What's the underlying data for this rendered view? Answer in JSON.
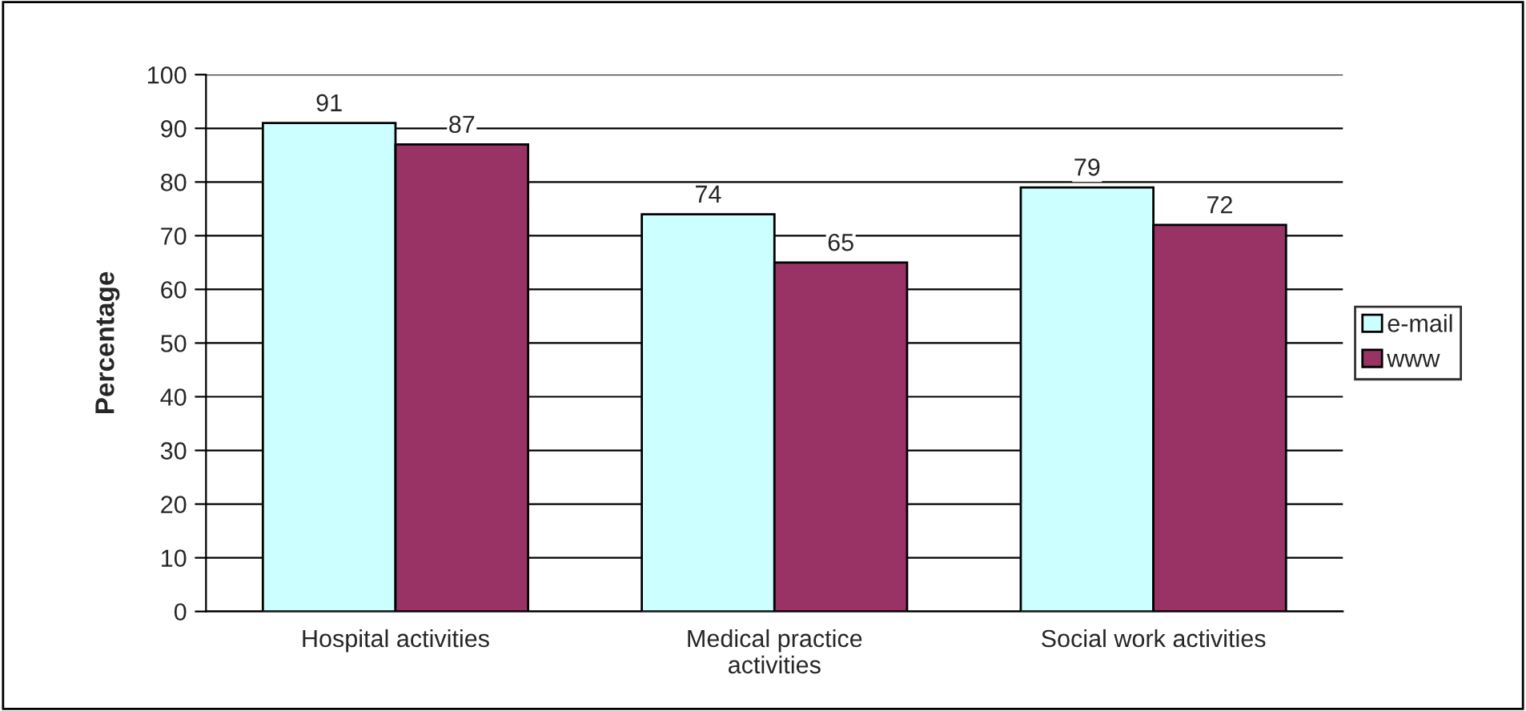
{
  "chart_data": {
    "type": "bar",
    "ylabel": "Percentage",
    "categories": [
      "Hospital activities",
      "Medical practice\nactivities",
      "Social work activities"
    ],
    "series": [
      {
        "name": "e-mail",
        "color": "#ccffff",
        "values": [
          91,
          74,
          79
        ]
      },
      {
        "name": "www",
        "color": "#993366",
        "values": [
          87,
          65,
          72
        ]
      }
    ],
    "ylim": [
      0,
      100
    ],
    "yticks": [
      0,
      10,
      20,
      30,
      40,
      50,
      60,
      70,
      80,
      90,
      100
    ],
    "grid": "y",
    "legend": "right",
    "data_labels": true
  }
}
